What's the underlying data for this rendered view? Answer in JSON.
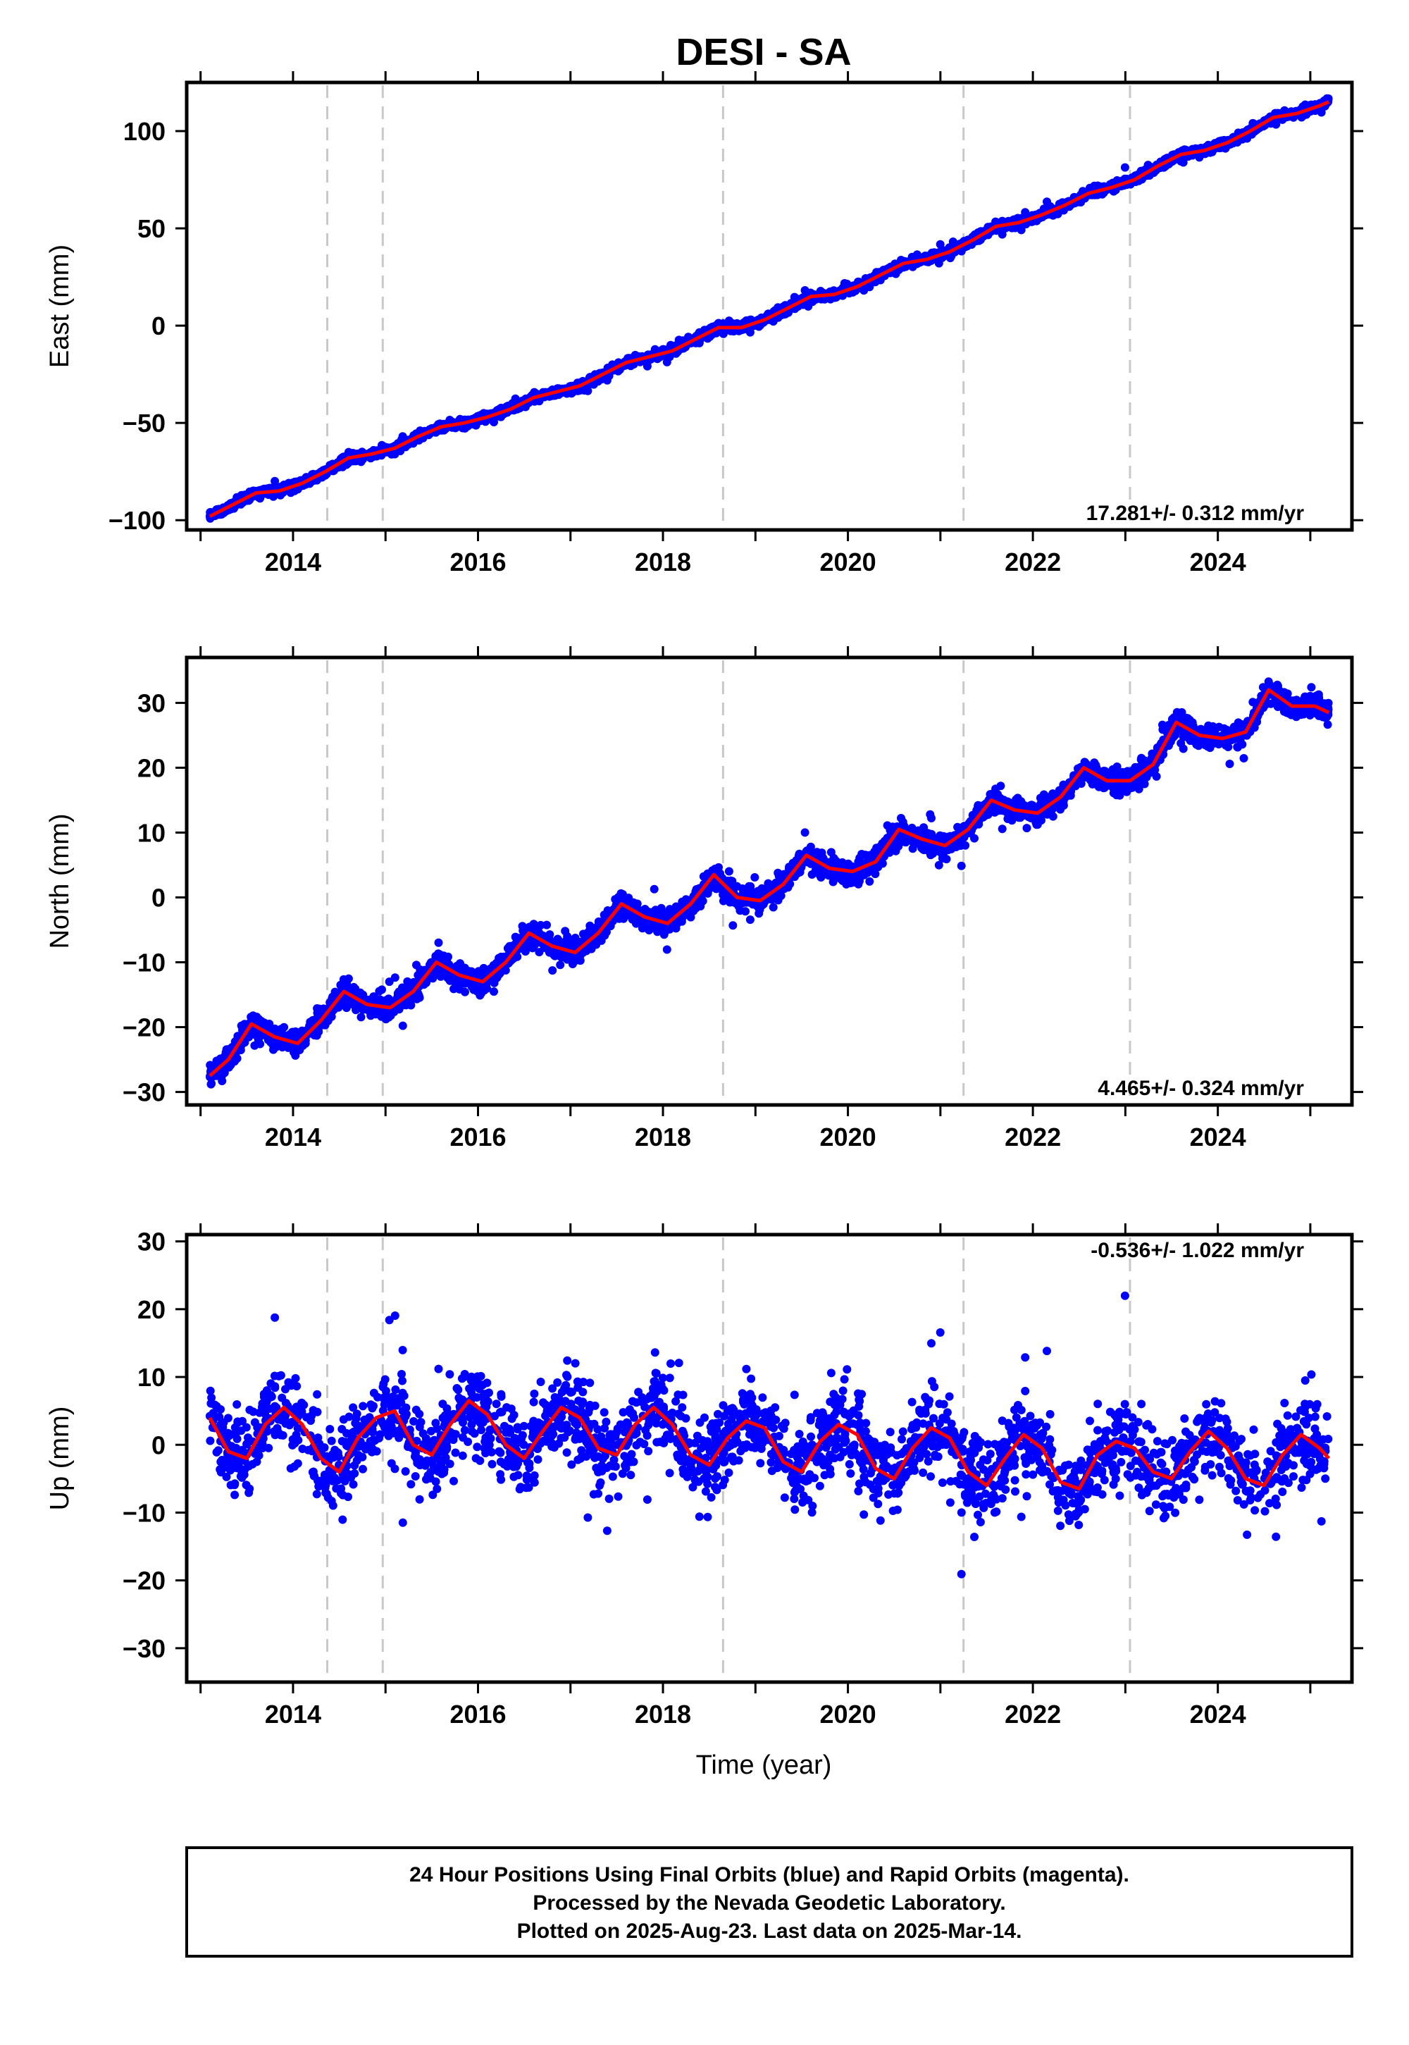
{
  "title": "DESI - SA",
  "xlabel": "Time (year)",
  "colors": {
    "points": "#0000ff",
    "fit": "#ff0000",
    "events": "#c8c8c8",
    "frame": "#000000"
  },
  "footer": {
    "line1": "24 Hour Positions Using Final Orbits (blue) and Rapid Orbits (magenta).",
    "line2": "Processed by the Nevada Geodetic Laboratory.",
    "line3": "Plotted on 2025-Aug-23. Last data on 2025-Mar-14."
  },
  "chart_data": [
    {
      "type": "scatter",
      "component": "east",
      "ylabel": "East (mm)",
      "rate_label": "17.281+/- 0.312 mm/yr",
      "xlim": [
        2012.85,
        2025.45
      ],
      "ylim": [
        -105,
        125
      ],
      "xticks": [
        2014,
        2016,
        2018,
        2020,
        2022,
        2024
      ],
      "yticks": [
        -100,
        -50,
        0,
        50,
        100
      ],
      "ytick_labels": [
        "−100",
        "−50",
        "0",
        "50",
        "100"
      ],
      "event_lines": [
        2014.37,
        2014.97,
        2018.65,
        2021.25,
        2023.05
      ],
      "series": [
        {
          "role": "fit",
          "x": [
            2013.1,
            2013.35,
            2013.6,
            2013.85,
            2014.1,
            2014.35,
            2014.6,
            2014.85,
            2015.1,
            2015.35,
            2015.6,
            2015.85,
            2016.1,
            2016.35,
            2016.6,
            2016.85,
            2017.1,
            2017.35,
            2017.6,
            2017.85,
            2018.1,
            2018.35,
            2018.6,
            2018.85,
            2019.1,
            2019.35,
            2019.6,
            2019.85,
            2020.1,
            2020.35,
            2020.6,
            2020.85,
            2021.1,
            2021.35,
            2021.6,
            2021.85,
            2022.1,
            2022.35,
            2022.6,
            2022.85,
            2023.1,
            2023.35,
            2023.6,
            2023.85,
            2024.1,
            2024.35,
            2024.6,
            2024.85,
            2025.1,
            2025.2
          ],
          "y": [
            -98,
            -92,
            -86,
            -85,
            -81,
            -75,
            -68,
            -66,
            -63,
            -57,
            -52,
            -50,
            -47,
            -43,
            -37,
            -34,
            -31,
            -25,
            -19,
            -16,
            -13,
            -7,
            -1,
            -1,
            3,
            9,
            15,
            16,
            20,
            26,
            32,
            34,
            38,
            44,
            51,
            53,
            57,
            62,
            68,
            71,
            75,
            82,
            88,
            90,
            94,
            100,
            107,
            109,
            113,
            115
          ]
        },
        {
          "role": "observed",
          "x_range": [
            2013.1,
            2025.2
          ],
          "count": 3600,
          "noise_mm": 2.0,
          "generated": "points scatter about the fit curve"
        }
      ]
    },
    {
      "type": "scatter",
      "component": "north",
      "ylabel": "North (mm)",
      "rate_label": "4.465+/- 0.324 mm/yr",
      "xlim": [
        2012.85,
        2025.45
      ],
      "ylim": [
        -32,
        37
      ],
      "xticks": [
        2014,
        2016,
        2018,
        2020,
        2022,
        2024
      ],
      "yticks": [
        -30,
        -20,
        -10,
        0,
        10,
        20,
        30
      ],
      "ytick_labels": [
        "−30",
        "−20",
        "−10",
        "0",
        "10",
        "20",
        "30"
      ],
      "event_lines": [
        2014.37,
        2014.97,
        2018.65,
        2021.25,
        2023.05
      ],
      "series": [
        {
          "role": "fit",
          "x": [
            2013.1,
            2013.3,
            2013.55,
            2013.8,
            2014.05,
            2014.3,
            2014.55,
            2014.8,
            2015.05,
            2015.3,
            2015.55,
            2015.8,
            2016.05,
            2016.3,
            2016.55,
            2016.8,
            2017.05,
            2017.3,
            2017.55,
            2017.8,
            2018.05,
            2018.3,
            2018.55,
            2018.8,
            2019.05,
            2019.3,
            2019.55,
            2019.8,
            2020.05,
            2020.3,
            2020.55,
            2020.8,
            2021.05,
            2021.3,
            2021.55,
            2021.8,
            2022.05,
            2022.3,
            2022.55,
            2022.8,
            2023.05,
            2023.3,
            2023.55,
            2023.8,
            2024.05,
            2024.3,
            2024.55,
            2024.8,
            2025.05,
            2025.2
          ],
          "y": [
            -27.5,
            -25,
            -19.5,
            -21.5,
            -22.5,
            -19,
            -14.5,
            -16.5,
            -17,
            -14.5,
            -10,
            -12,
            -13,
            -10,
            -5.5,
            -7.5,
            -8.5,
            -5.5,
            -1,
            -3,
            -4,
            -1,
            3.5,
            0,
            -0.5,
            2,
            6.5,
            4.5,
            4,
            5.5,
            10.5,
            9,
            8,
            10.5,
            15,
            13.5,
            13,
            15.5,
            20,
            18,
            18,
            20.5,
            27,
            25,
            24.5,
            25.5,
            32,
            29.5,
            29.5,
            28.5
          ]
        },
        {
          "role": "observed",
          "x_range": [
            2013.1,
            2025.2
          ],
          "count": 3600,
          "noise_mm": 1.6,
          "generated": "points scatter about the fit curve"
        }
      ]
    },
    {
      "type": "scatter",
      "component": "up",
      "ylabel": "Up (mm)",
      "rate_label": "-0.536+/- 1.022 mm/yr",
      "xlim": [
        2012.85,
        2025.45
      ],
      "ylim": [
        -35,
        31
      ],
      "xticks": [
        2014,
        2016,
        2018,
        2020,
        2022,
        2024
      ],
      "yticks": [
        -30,
        -20,
        -10,
        0,
        10,
        20,
        30
      ],
      "ytick_labels": [
        "−30",
        "−20",
        "−10",
        "0",
        "10",
        "20",
        "30"
      ],
      "event_lines": [
        2014.37,
        2014.97,
        2018.65,
        2021.25,
        2023.05
      ],
      "series": [
        {
          "role": "fit",
          "x": [
            2013.1,
            2013.3,
            2013.5,
            2013.7,
            2013.9,
            2014.1,
            2014.3,
            2014.5,
            2014.7,
            2014.9,
            2015.1,
            2015.3,
            2015.5,
            2015.7,
            2015.9,
            2016.1,
            2016.3,
            2016.5,
            2016.7,
            2016.9,
            2017.1,
            2017.3,
            2017.5,
            2017.7,
            2017.9,
            2018.1,
            2018.3,
            2018.5,
            2018.7,
            2018.9,
            2019.1,
            2019.3,
            2019.5,
            2019.7,
            2019.9,
            2020.1,
            2020.3,
            2020.5,
            2020.7,
            2020.9,
            2021.1,
            2021.3,
            2021.5,
            2021.7,
            2021.9,
            2022.1,
            2022.3,
            2022.5,
            2022.7,
            2022.9,
            2023.1,
            2023.3,
            2023.5,
            2023.7,
            2023.9,
            2024.1,
            2024.3,
            2024.5,
            2024.7,
            2024.9,
            2025.1,
            2025.2
          ],
          "y": [
            4,
            -1,
            -2,
            3,
            5.5,
            3,
            -2,
            -4,
            1,
            4,
            5,
            0,
            -1.5,
            3,
            6.5,
            4.5,
            0,
            -2,
            2,
            5.5,
            4,
            -0.5,
            -1.5,
            3,
            5.5,
            3,
            -1.5,
            -3,
            1,
            3.5,
            2.5,
            -2.5,
            -4,
            0.5,
            3,
            1.5,
            -3.5,
            -5,
            -0.5,
            2.5,
            1,
            -4,
            -6,
            -2,
            1.5,
            -0.5,
            -5.5,
            -6.5,
            -1.5,
            0.5,
            -0.5,
            -4,
            -5,
            -1,
            2,
            -0.5,
            -5,
            -6,
            -1.5,
            1.5,
            -0.5,
            -2
          ]
        },
        {
          "role": "observed",
          "x_range": [
            2013.1,
            2025.2
          ],
          "count": 2400,
          "noise_mm": 5.5,
          "generated": "points scatter about the fit curve"
        }
      ]
    }
  ]
}
